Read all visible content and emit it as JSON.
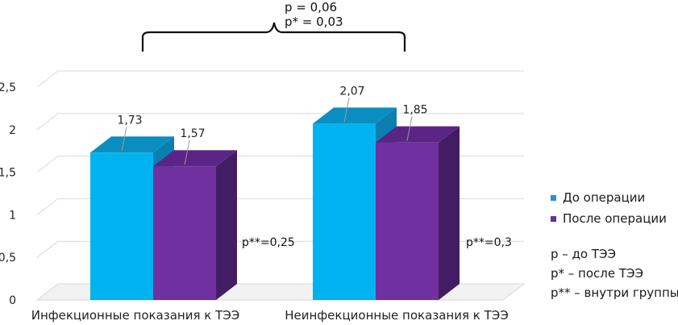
{
  "chart_data": {
    "type": "bar",
    "style": "3d-clustered-column",
    "categories": [
      "Инфекционные показания к ТЭЭ",
      "Неинфекционные показания к ТЭЭ"
    ],
    "series": [
      {
        "name": "До операции",
        "values": [
          1.73,
          2.07
        ],
        "labels": [
          "1,73",
          "2,07"
        ],
        "color": "#00b3f0",
        "top_color": "#0a8ec0",
        "side_color": "#0a7fb0"
      },
      {
        "name": "После операции",
        "values": [
          1.57,
          1.85
        ],
        "labels": [
          "1,57",
          "1,85"
        ],
        "color": "#7030a0",
        "top_color": "#5b2585",
        "side_color": "#431d63"
      }
    ],
    "ylim": [
      0,
      2.5
    ],
    "yticks": [
      "0",
      "0,5",
      "1",
      "1,5",
      "2",
      "2,5"
    ],
    "grid": true,
    "legend_position": "right",
    "group_stats": [
      "p**=0,25",
      "p**=0,3"
    ],
    "annotation": {
      "line1": "p = 0,06",
      "line2": "p* = 0,03"
    },
    "notes": [
      "p – до ТЭЭ",
      "p* – после ТЭЭ",
      "p** – внутри группы"
    ]
  }
}
